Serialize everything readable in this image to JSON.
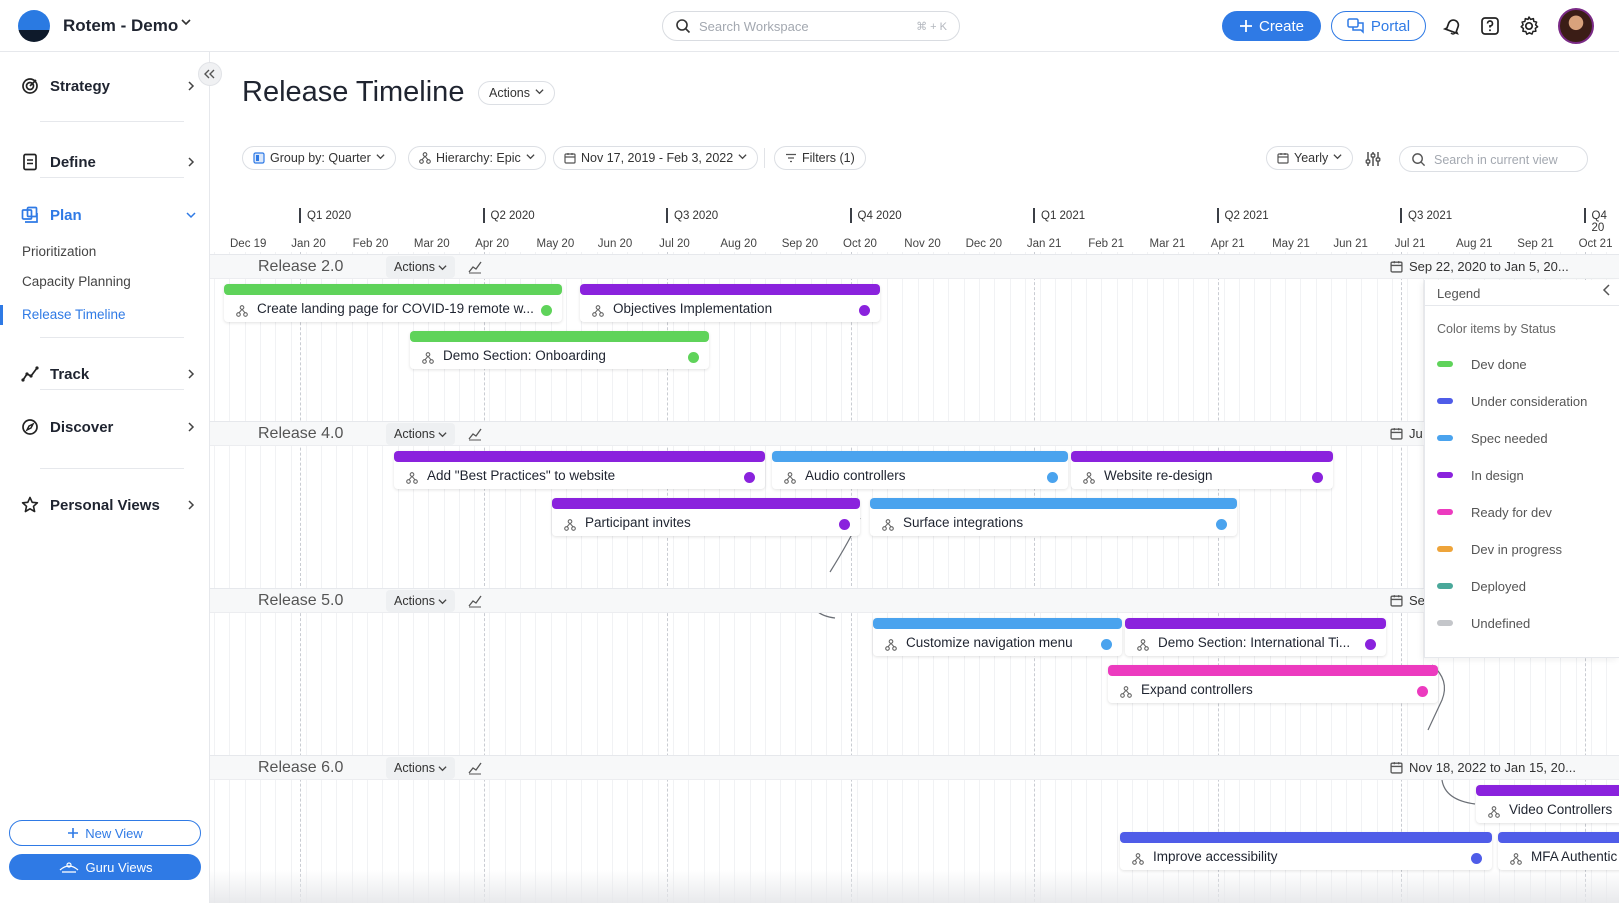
{
  "header": {
    "workspace_name": "Rotem - Demo",
    "search_placeholder": "Search Workspace",
    "search_shortcut": "⌘ + K",
    "create_label": "Create",
    "portal_label": "Portal"
  },
  "sidebar": {
    "items": [
      {
        "label": "Strategy",
        "icon": "target-icon"
      },
      {
        "label": "Define",
        "icon": "document-icon"
      },
      {
        "label": "Plan",
        "icon": "layers-icon"
      },
      {
        "label": "Track",
        "icon": "chart-icon"
      },
      {
        "label": "Discover",
        "icon": "compass-icon"
      },
      {
        "label": "Personal Views",
        "icon": "star-icon"
      }
    ],
    "plan_subitems": [
      "Prioritization",
      "Capacity Planning",
      "Release Timeline"
    ],
    "new_view_label": "New View",
    "guru_views_label": "Guru Views"
  },
  "page": {
    "title": "Release Timeline",
    "actions_label": "Actions"
  },
  "toolbar": {
    "group_by": "Group by: Quarter",
    "hierarchy": "Hierarchy: Epic",
    "date_range": "Nov 17, 2019 - Feb 3, 2022",
    "filters": "Filters (1)",
    "scale": "Yearly",
    "search_placeholder": "Search in current view"
  },
  "timeline": {
    "quarters": [
      "Q1 2020",
      "Q2 2020",
      "Q3 2020",
      "Q4 2020",
      "Q1 2021",
      "Q2 2021",
      "Q3 2021",
      "Q4 20"
    ],
    "months": [
      "Dec 19",
      "Jan 20",
      "Feb 20",
      "Mar 20",
      "Apr 20",
      "May 20",
      "Jun 20",
      "Jul 20",
      "Aug 20",
      "Sep 20",
      "Oct 20",
      "Nov 20",
      "Dec 20",
      "Jan 21",
      "Feb 21",
      "Mar 21",
      "Apr 21",
      "May 21",
      "Jun 21",
      "Jul 21",
      "Aug 21",
      "Sep 21",
      "Oct 21"
    ],
    "actions_label": "Actions",
    "releases": [
      {
        "name": "Release 2.0",
        "date": "Sep 22, 2020 to Jan 5, 20...",
        "epics": [
          {
            "title": "Create landing page for COVID-19 remote w...",
            "status": "Dev done"
          },
          {
            "title": "Objectives Implementation",
            "status": "In design"
          },
          {
            "title": "Demo Section: Onboarding",
            "status": "Dev done"
          }
        ]
      },
      {
        "name": "Release 4.0",
        "date": "Ju",
        "epics": [
          {
            "title": "Add \"Best Practices\" to website",
            "status": "In design"
          },
          {
            "title": "Audio controllers",
            "status": "Spec needed"
          },
          {
            "title": "Website re-design",
            "status": "In design"
          },
          {
            "title": "Participant invites",
            "status": "In design"
          },
          {
            "title": "Surface integrations",
            "status": "Spec needed"
          }
        ]
      },
      {
        "name": "Release 5.0",
        "date": "Se",
        "epics": [
          {
            "title": "Customize navigation menu",
            "status": "Spec needed"
          },
          {
            "title": "Demo Section: International Ti...",
            "status": "In design"
          },
          {
            "title": "Expand controllers",
            "status": "Ready for dev"
          }
        ]
      },
      {
        "name": "Release 6.0",
        "date": "Nov 18, 2022 to Jan 15, 20...",
        "epics": [
          {
            "title": "Video Controllers",
            "status": "In design"
          },
          {
            "title": "Improve accessibility",
            "status": "Under consideration"
          },
          {
            "title": "MFA Authentic",
            "status": "Under consideration"
          }
        ]
      }
    ]
  },
  "legend": {
    "title": "Legend",
    "subtitle": "Color items by Status",
    "items": [
      {
        "label": "Dev done",
        "color": "#5fd35a"
      },
      {
        "label": "Under consideration",
        "color": "#4f5ce8"
      },
      {
        "label": "Spec needed",
        "color": "#4aa3ee"
      },
      {
        "label": "In design",
        "color": "#8a22dd"
      },
      {
        "label": "Ready for dev",
        "color": "#ec3bbf"
      },
      {
        "label": "Dev in progress",
        "color": "#eea43a"
      },
      {
        "label": "Deployed",
        "color": "#4aa89a"
      },
      {
        "label": "Undefined",
        "color": "#c4c6ca"
      }
    ]
  }
}
